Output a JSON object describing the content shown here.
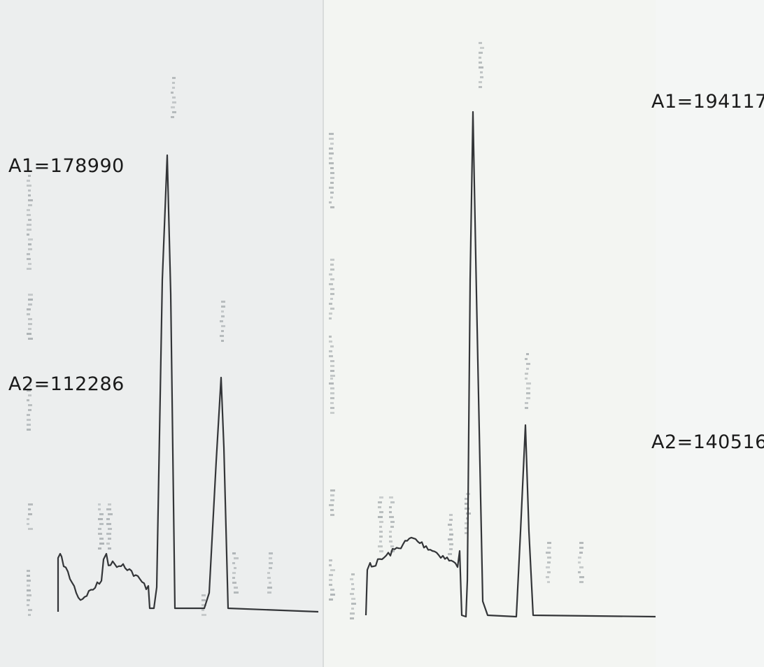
{
  "colors": {
    "left_paper": "#eceeee",
    "right_paper": "#f3f5f2",
    "trace": "#333538",
    "faint_print": "#9aa0a3",
    "label_text": "#1a1a1a"
  },
  "chart_data": [
    {
      "type": "line",
      "panel": "left",
      "annotations": [
        "A1=178990",
        "A2=112286"
      ],
      "peaks": [
        {
          "name": "A1",
          "area": 178990,
          "x": 0.53
        },
        {
          "name": "A2",
          "area": 112286,
          "x": 0.75
        }
      ]
    },
    {
      "type": "line",
      "panel": "right",
      "annotations": [
        "A1=194117",
        "A2=140516"
      ],
      "peaks": [
        {
          "name": "A1",
          "area": 194117,
          "x": 0.44
        },
        {
          "name": "A2",
          "area": 140516,
          "x": 0.63
        }
      ]
    }
  ]
}
